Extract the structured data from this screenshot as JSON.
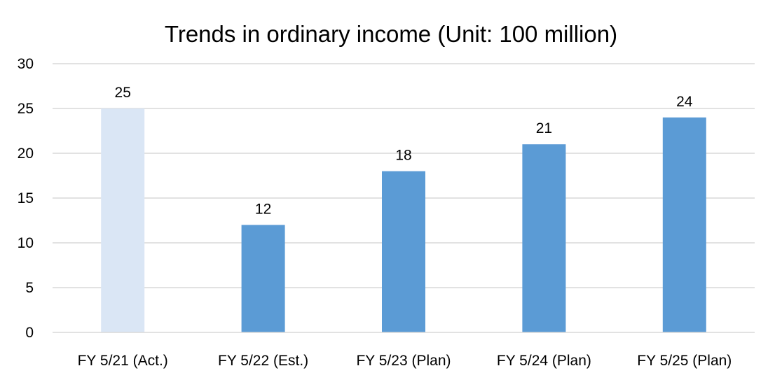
{
  "chart_data": {
    "type": "bar",
    "title": "Trends in ordinary income (Unit: 100 million)",
    "categories": [
      "FY 5/21 (Act.)",
      "FY 5/22 (Est.)",
      "FY 5/23 (Plan)",
      "FY 5/24 (Plan)",
      "FY 5/25 (Plan)"
    ],
    "values": [
      25,
      12,
      18,
      21,
      24
    ],
    "bar_colors": [
      "#dae6f5",
      "#5b9bd5",
      "#5b9bd5",
      "#5b9bd5",
      "#5b9bd5"
    ],
    "ylim": [
      0,
      30
    ],
    "yticks": [
      0,
      5,
      10,
      15,
      20,
      25,
      30
    ],
    "grid": true,
    "legend": "none",
    "xlabel": "",
    "ylabel": ""
  }
}
